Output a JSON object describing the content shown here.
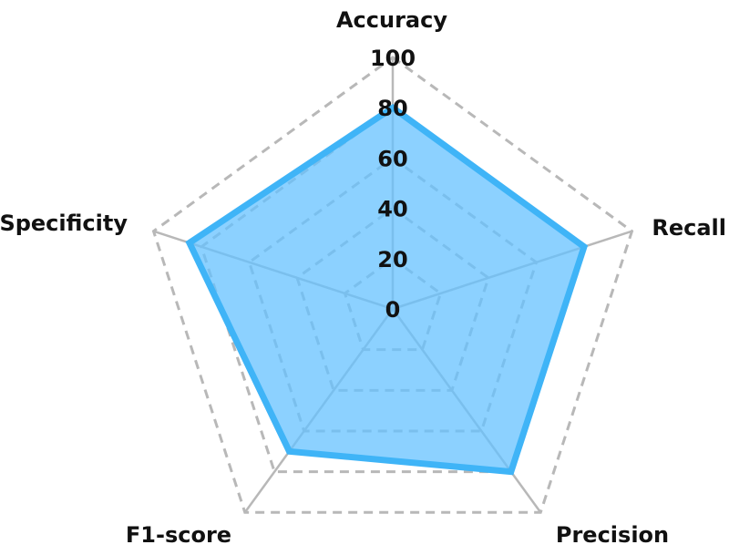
{
  "chart_data": {
    "type": "radar",
    "title": "",
    "axes": [
      "Accuracy",
      "Recall",
      "Precision",
      "F1-score",
      "Specificity"
    ],
    "radial_ticks": [
      "0",
      "20",
      "40",
      "60",
      "80",
      "100"
    ],
    "range": [
      0,
      100
    ],
    "grid": "dashed",
    "highlighted_axis": "Recall",
    "series": [
      {
        "values": [
          80,
          80,
          80,
          70,
          85
        ]
      }
    ]
  },
  "colors": {
    "fill": "#66c2ff",
    "stroke": "#3fb4f7",
    "grid": "#b8b8b8",
    "label": "#111111",
    "highlight_label": "#ee3311"
  }
}
